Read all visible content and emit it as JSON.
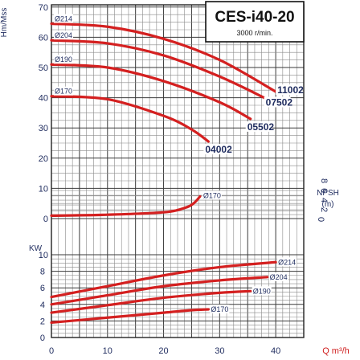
{
  "title": "CES-i40-20",
  "subtitle": "3000 r/min.",
  "colors": {
    "curve": "#d42020",
    "axis_text": "#1e2b5e",
    "grid_major": "#3a3a3a",
    "grid_minor": "#8a8a8a"
  },
  "chart_data": {
    "type": "line",
    "x_axis": {
      "label": "Q m³/h",
      "ticks": [
        0,
        10,
        20,
        30,
        40
      ],
      "range": [
        0,
        45
      ]
    },
    "head_axis": {
      "label": "Hm/Mss",
      "ticks": [
        0,
        10,
        20,
        30,
        40,
        50,
        60,
        70
      ],
      "range": [
        0,
        70
      ]
    },
    "npsh_axis": {
      "label": "NPSH",
      "unit": "(m)",
      "ticks": [
        0,
        2,
        4,
        6,
        8
      ],
      "range": [
        0,
        8
      ]
    },
    "power_axis": {
      "label": "KW",
      "ticks": [
        0,
        2,
        4,
        6,
        8,
        10
      ],
      "range": [
        0,
        10
      ]
    },
    "head_curves": [
      {
        "diameter": "Ø214",
        "model": "11002",
        "x": [
          0,
          10,
          20,
          30,
          40
        ],
        "y": [
          64.5,
          63.5,
          59.5,
          52.5,
          42
        ]
      },
      {
        "diameter": "Ø204",
        "model": "07502",
        "x": [
          0,
          10,
          20,
          30,
          38.5
        ],
        "y": [
          59,
          58,
          54,
          47,
          39.5
        ]
      },
      {
        "diameter": "Ø190",
        "model": "05502",
        "x": [
          0,
          10,
          20,
          30,
          35.5
        ],
        "y": [
          51,
          50,
          45.5,
          38.5,
          33
        ]
      },
      {
        "diameter": "Ø170",
        "model": "04002",
        "x": [
          0,
          10,
          20,
          25,
          28
        ],
        "y": [
          40.5,
          39.5,
          34,
          29.5,
          25.5
        ]
      }
    ],
    "npsh_curve": {
      "label": "Ø170",
      "x": [
        0,
        10,
        20,
        24,
        25.5,
        26.5
      ],
      "y": [
        0.6,
        0.8,
        1.3,
        2.3,
        3.3,
        4.6
      ]
    },
    "power_curves": [
      {
        "diameter": "Ø214",
        "x": [
          0,
          10,
          20,
          30,
          40
        ],
        "y": [
          4.9,
          6.2,
          7.5,
          8.5,
          9.1
        ]
      },
      {
        "diameter": "Ø204",
        "x": [
          0,
          10,
          20,
          30,
          38.5
        ],
        "y": [
          4.0,
          5.1,
          6.2,
          6.9,
          7.3
        ]
      },
      {
        "diameter": "Ø190",
        "x": [
          0,
          10,
          20,
          30,
          35.5
        ],
        "y": [
          3.0,
          3.9,
          4.8,
          5.4,
          5.6
        ]
      },
      {
        "diameter": "Ø170",
        "x": [
          0,
          10,
          20,
          25,
          28
        ],
        "y": [
          1.8,
          2.4,
          3.0,
          3.3,
          3.4
        ]
      }
    ]
  }
}
